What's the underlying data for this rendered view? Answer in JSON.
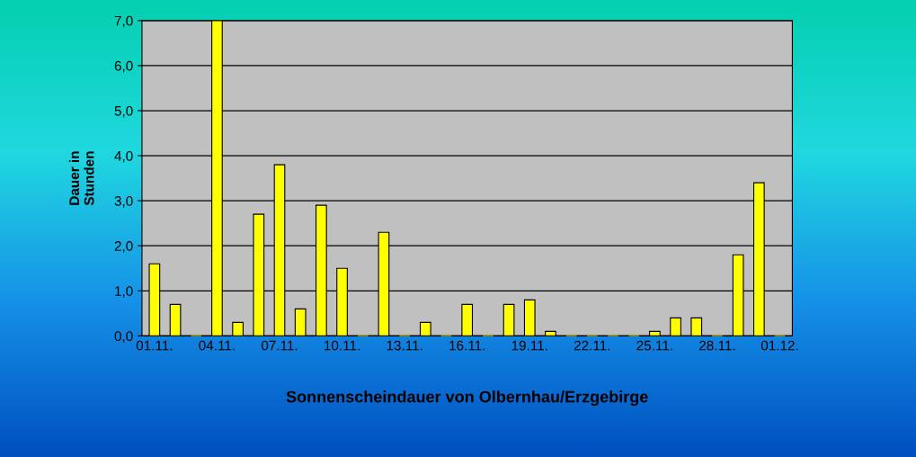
{
  "chart_data": {
    "type": "bar",
    "xlabel": "Sonnenscheindauer von Olbernhau/Erzgebirge",
    "ylabel": "Dauer in\nStunden",
    "categories": [
      "01.11.",
      null,
      null,
      "04.11.",
      null,
      null,
      "07.11.",
      null,
      null,
      "10.11.",
      null,
      null,
      "13.11.",
      null,
      null,
      "16.11.",
      null,
      null,
      "19.11.",
      null,
      null,
      "22.11.",
      null,
      null,
      "25.11.",
      null,
      null,
      "28.11.",
      null,
      null,
      "01.12."
    ],
    "values": [
      1.6,
      0.7,
      0,
      7.0,
      0.3,
      2.7,
      3.8,
      0.6,
      2.9,
      1.5,
      0,
      2.3,
      0,
      0.3,
      0,
      0.7,
      0,
      0.7,
      0.8,
      0.1,
      0,
      0,
      0,
      0,
      0.1,
      0.4,
      0.4,
      0,
      1.8,
      3.4,
      0
    ],
    "color": "#ffff00",
    "ylim": [
      0,
      7
    ],
    "yticks": [
      {
        "value": 0,
        "label": "0,0"
      },
      {
        "value": 1,
        "label": "1,0"
      },
      {
        "value": 2,
        "label": "2,0"
      },
      {
        "value": 3,
        "label": "3,0"
      },
      {
        "value": 4,
        "label": "4,0"
      },
      {
        "value": 5,
        "label": "5,0"
      },
      {
        "value": 6,
        "label": "6,0"
      },
      {
        "value": 7,
        "label": "7,0"
      }
    ],
    "grid": "y"
  }
}
